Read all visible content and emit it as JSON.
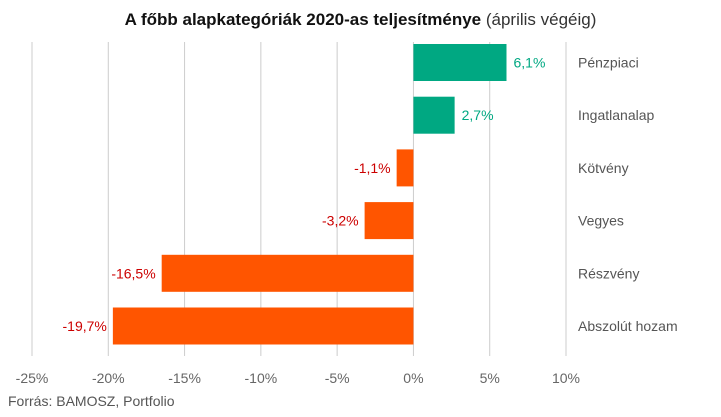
{
  "chart_data": {
    "type": "bar",
    "orientation": "horizontal",
    "title_bold": "A főbb alapkategóriák 2020-as teljesítménye",
    "title_light": "(április végéig)",
    "categories": [
      "Pénzpiaci",
      "Ingatlanalap",
      "Kötvény",
      "Vegyes",
      "Részvény",
      "Abszolút hozam"
    ],
    "values": [
      6.1,
      2.7,
      -1.1,
      -3.2,
      -16.5,
      -19.7
    ],
    "value_labels": [
      "6,1%",
      "2,7%",
      "-1,1%",
      "-3,2%",
      "-16,5%",
      "-19,7%"
    ],
    "xlim": [
      -25,
      10
    ],
    "xticks": [
      -25,
      -20,
      -15,
      -10,
      -5,
      0,
      5,
      10
    ],
    "xtick_labels": [
      "-25%",
      "-20%",
      "-15%",
      "-10%",
      "-5%",
      "0%",
      "5%",
      "10%"
    ],
    "grid": true,
    "colors": {
      "positive": "#00a882",
      "negative": "#ff5500",
      "positive_label": "#00a882",
      "negative_label": "#cc0000",
      "grid": "#cccccc",
      "axis_text": "#666666",
      "category_text": "#555555"
    },
    "source": "Forrás: BAMOSZ, Portfolio"
  }
}
